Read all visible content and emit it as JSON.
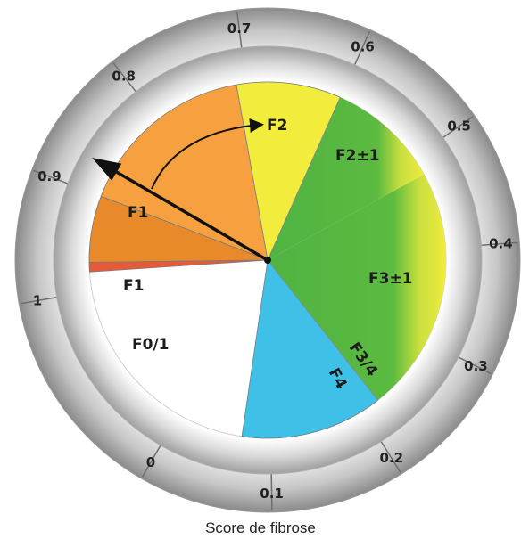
{
  "caption": "Score de fibrose",
  "scale": {
    "ticks": [
      {
        "value": 0,
        "label": "0"
      },
      {
        "value": 0.1,
        "label": "0.1"
      },
      {
        "value": 0.2,
        "label": "0.2"
      },
      {
        "value": 0.3,
        "label": "0.3"
      },
      {
        "value": 0.4,
        "label": "0.4"
      },
      {
        "value": 0.5,
        "label": "0.5"
      },
      {
        "value": 0.6,
        "label": "0.6"
      },
      {
        "value": 0.7,
        "label": "0.7"
      },
      {
        "value": 0.8,
        "label": "0.8"
      },
      {
        "value": 0.9,
        "label": "0.9"
      },
      {
        "value": 1,
        "label": "1"
      }
    ]
  },
  "segments": [
    {
      "label": "F0/1",
      "from": 0.07,
      "to": 0.22,
      "color": "#3fc0e6"
    },
    {
      "label": "F1",
      "from": 0.22,
      "to": 0.48,
      "color": "#4fb443"
    },
    {
      "label": "F2",
      "from": 0.48,
      "to": 0.6,
      "color": "#f2ec3c"
    },
    {
      "label": "F2±1",
      "from": 0.6,
      "to": 0.71,
      "color": "#f2ec3c"
    },
    {
      "label": "F3±1",
      "from": 0.71,
      "to": 0.9,
      "color": "#f7a040"
    },
    {
      "label": "F3/4",
      "from": 0.9,
      "to": 0.97,
      "color": "#e98a2a"
    },
    {
      "label": "F4",
      "from": 0.97,
      "to": 0.98,
      "color": "#e55a3a"
    }
  ],
  "segment_labels": {
    "f01": "F0/1",
    "f1_lower": "F1",
    "f1_upper": "F1",
    "f2": "F2",
    "f2pm1": "F2±1",
    "f3pm1": "F3±1",
    "f34": "F3/4",
    "f4": "F4"
  },
  "pointer": {
    "value": 0.87
  },
  "colors": {
    "f01": "#3fc0e6",
    "f1": "#4fb443",
    "f2": "#f2ec3c",
    "f3": "#f7a040",
    "f34": "#e98a2a",
    "f4": "#e55a3a",
    "pointer": "#111111"
  }
}
